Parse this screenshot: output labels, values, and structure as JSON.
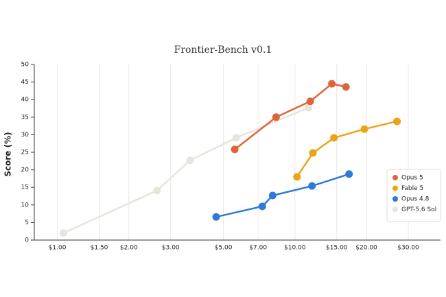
{
  "chart_data": {
    "type": "line",
    "title": "Frontier-Bench v0.1",
    "y_label": "Score (%)",
    "x_scale": "log",
    "legend_position": "lower right",
    "grid": "x",
    "xlim": [
      0.8,
      41
    ],
    "ylim": [
      0,
      50
    ],
    "xticks": [
      {
        "value": 1,
        "label": "$1.00"
      },
      {
        "value": 1.5,
        "label": "$1.50"
      },
      {
        "value": 2,
        "label": "$2.00"
      },
      {
        "value": 3,
        "label": "$3.00"
      },
      {
        "value": 5,
        "label": "$5.00"
      },
      {
        "value": 7,
        "label": "$7.00"
      },
      {
        "value": 10,
        "label": "$10.00"
      },
      {
        "value": 15,
        "label": "$15.00"
      },
      {
        "value": 20,
        "label": "$20.00"
      },
      {
        "value": 30,
        "label": "$30.00"
      }
    ],
    "yticks": [
      0,
      5,
      10,
      15,
      20,
      25,
      30,
      35,
      40,
      45,
      50
    ],
    "series": [
      {
        "name": "Opus 5",
        "color": "#e0643a",
        "x": [
          5.58,
          8.33,
          11.6,
          14.3,
          16.4
        ],
        "values": [
          25.8,
          35.0,
          39.5,
          44.5,
          43.6
        ]
      },
      {
        "name": "Fable 5",
        "color": "#eaa416",
        "x": [
          10.2,
          11.9,
          14.6,
          19.6,
          26.9
        ],
        "values": [
          18.0,
          24.8,
          29.1,
          31.6,
          33.8
        ]
      },
      {
        "name": "Opus 4.8",
        "color": "#2f7ad6",
        "x": [
          4.66,
          7.29,
          8.06,
          11.8,
          16.9
        ],
        "values": [
          6.6,
          9.6,
          12.7,
          15.4,
          18.8
        ]
      },
      {
        "name": "GPT-5.6 Sol",
        "color": "#e6e4dc",
        "x": [
          1.06,
          2.63,
          3.62,
          5.66,
          11.4
        ],
        "values": [
          2.0,
          14.1,
          22.7,
          29.1,
          37.7
        ]
      }
    ]
  }
}
